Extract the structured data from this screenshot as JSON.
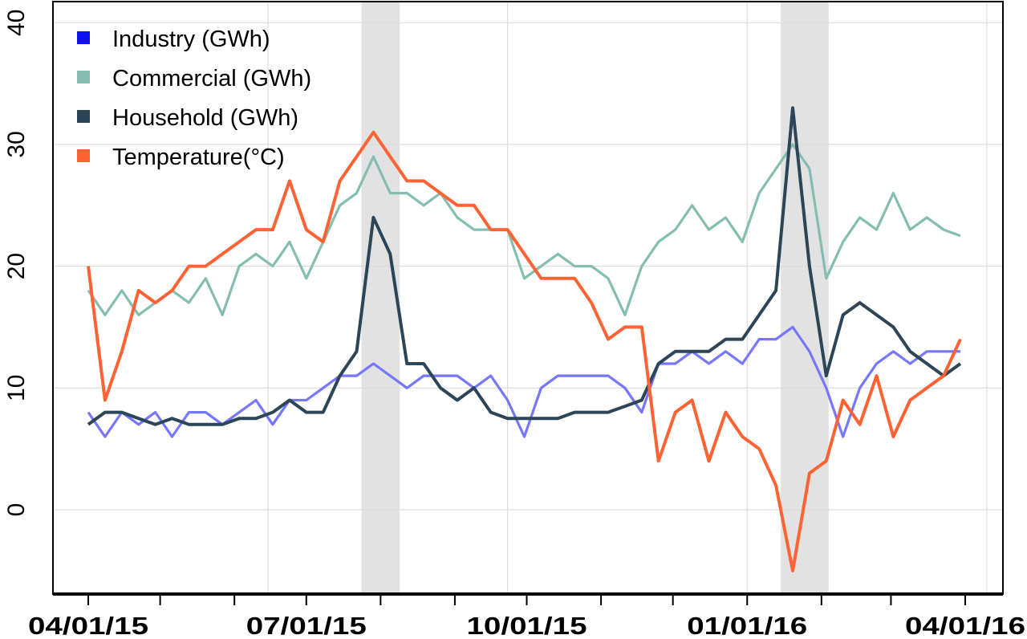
{
  "chart_data": {
    "type": "line",
    "title": "",
    "xlabel": "",
    "ylabel": "",
    "x_unit": "days since 04/01/15 (weekly samples)",
    "xlim": [
      -15,
      380
    ],
    "ylim": [
      -7,
      41
    ],
    "grid": true,
    "legend_position": "top-left",
    "yticks": [
      0,
      10,
      20,
      30,
      40
    ],
    "ytick_labels": [
      "0",
      "10",
      "20",
      "30",
      "40"
    ],
    "xticks_minor": [
      0,
      30,
      61,
      91,
      122,
      153,
      183,
      214,
      244,
      275,
      306,
      335,
      366
    ],
    "xticks": [
      0,
      91,
      183,
      275,
      366
    ],
    "xtick_labels": [
      "04/01/15",
      "07/01/15",
      "10/01/15",
      "01/01/16",
      "04/01/16"
    ],
    "xgrid": [
      75,
      175,
      275,
      375
    ],
    "shaded_periods": [
      [
        114,
        130
      ],
      [
        289,
        309
      ]
    ],
    "x": [
      0,
      7,
      14,
      21,
      28,
      35,
      42,
      49,
      56,
      63,
      70,
      77,
      84,
      91,
      98,
      105,
      112,
      119,
      126,
      133,
      140,
      147,
      154,
      161,
      168,
      175,
      182,
      189,
      196,
      203,
      210,
      217,
      224,
      231,
      238,
      245,
      252,
      259,
      266,
      273,
      280,
      287,
      294,
      301,
      308,
      315,
      322,
      329,
      336,
      343,
      350,
      357,
      364
    ],
    "series": [
      {
        "name": "Industry (GWh)",
        "color": "#7676ff",
        "legend_color": "#1010f0",
        "values": [
          8,
          6,
          8,
          7,
          8,
          6,
          8,
          8,
          7,
          8,
          9,
          7,
          9,
          9,
          10,
          11,
          11,
          12,
          11,
          10,
          11,
          11,
          11,
          10,
          11,
          9,
          6,
          10,
          11,
          11,
          11,
          11,
          10,
          8,
          12,
          12,
          13,
          12,
          13,
          12,
          14,
          14,
          15,
          13,
          10,
          6,
          10,
          12,
          13,
          12,
          13,
          13,
          13
        ]
      },
      {
        "name": "Commercial (GWh)",
        "color": "#86bdb1",
        "legend_color": "#86bdb1",
        "values": [
          18,
          16,
          18,
          16,
          17,
          18,
          17,
          19,
          16,
          20,
          21,
          20,
          22,
          19,
          22,
          25,
          26,
          29,
          26,
          26,
          25,
          26,
          24,
          23,
          23,
          23,
          19,
          20,
          21,
          20,
          20,
          19,
          16,
          20,
          22,
          23,
          25,
          23,
          24,
          22,
          26,
          28,
          30,
          28,
          19,
          22,
          24,
          23,
          26,
          23,
          24,
          23,
          22.5
        ]
      },
      {
        "name": "Household (GWh)",
        "color": "#2c4657",
        "legend_color": "#2c4657",
        "values": [
          7,
          8,
          8,
          7.5,
          7,
          7.5,
          7,
          7,
          7,
          7.5,
          7.5,
          8,
          9,
          8,
          8,
          11,
          13,
          24,
          21,
          12,
          12,
          10,
          9,
          10,
          8,
          7.5,
          7.5,
          7.5,
          7.5,
          8,
          8,
          8,
          8.5,
          9,
          12,
          13,
          13,
          13,
          14,
          14,
          16,
          18,
          33,
          20,
          11,
          16,
          17,
          16,
          15,
          13,
          12,
          11,
          12
        ]
      },
      {
        "name": "Temperature(°C)",
        "color": "#ff6233",
        "legend_color": "#ff6233",
        "values": [
          20,
          9,
          13,
          18,
          17,
          18,
          20,
          20,
          21,
          22,
          23,
          23,
          27,
          23,
          22,
          27,
          29,
          31,
          29,
          27,
          27,
          26,
          25,
          25,
          23,
          23,
          21,
          19,
          19,
          19,
          17,
          14,
          15,
          15,
          4,
          8,
          9,
          4,
          8,
          6,
          5,
          2,
          -5,
          3,
          4,
          9,
          7,
          11,
          6,
          9,
          10,
          11,
          14
        ]
      }
    ]
  }
}
